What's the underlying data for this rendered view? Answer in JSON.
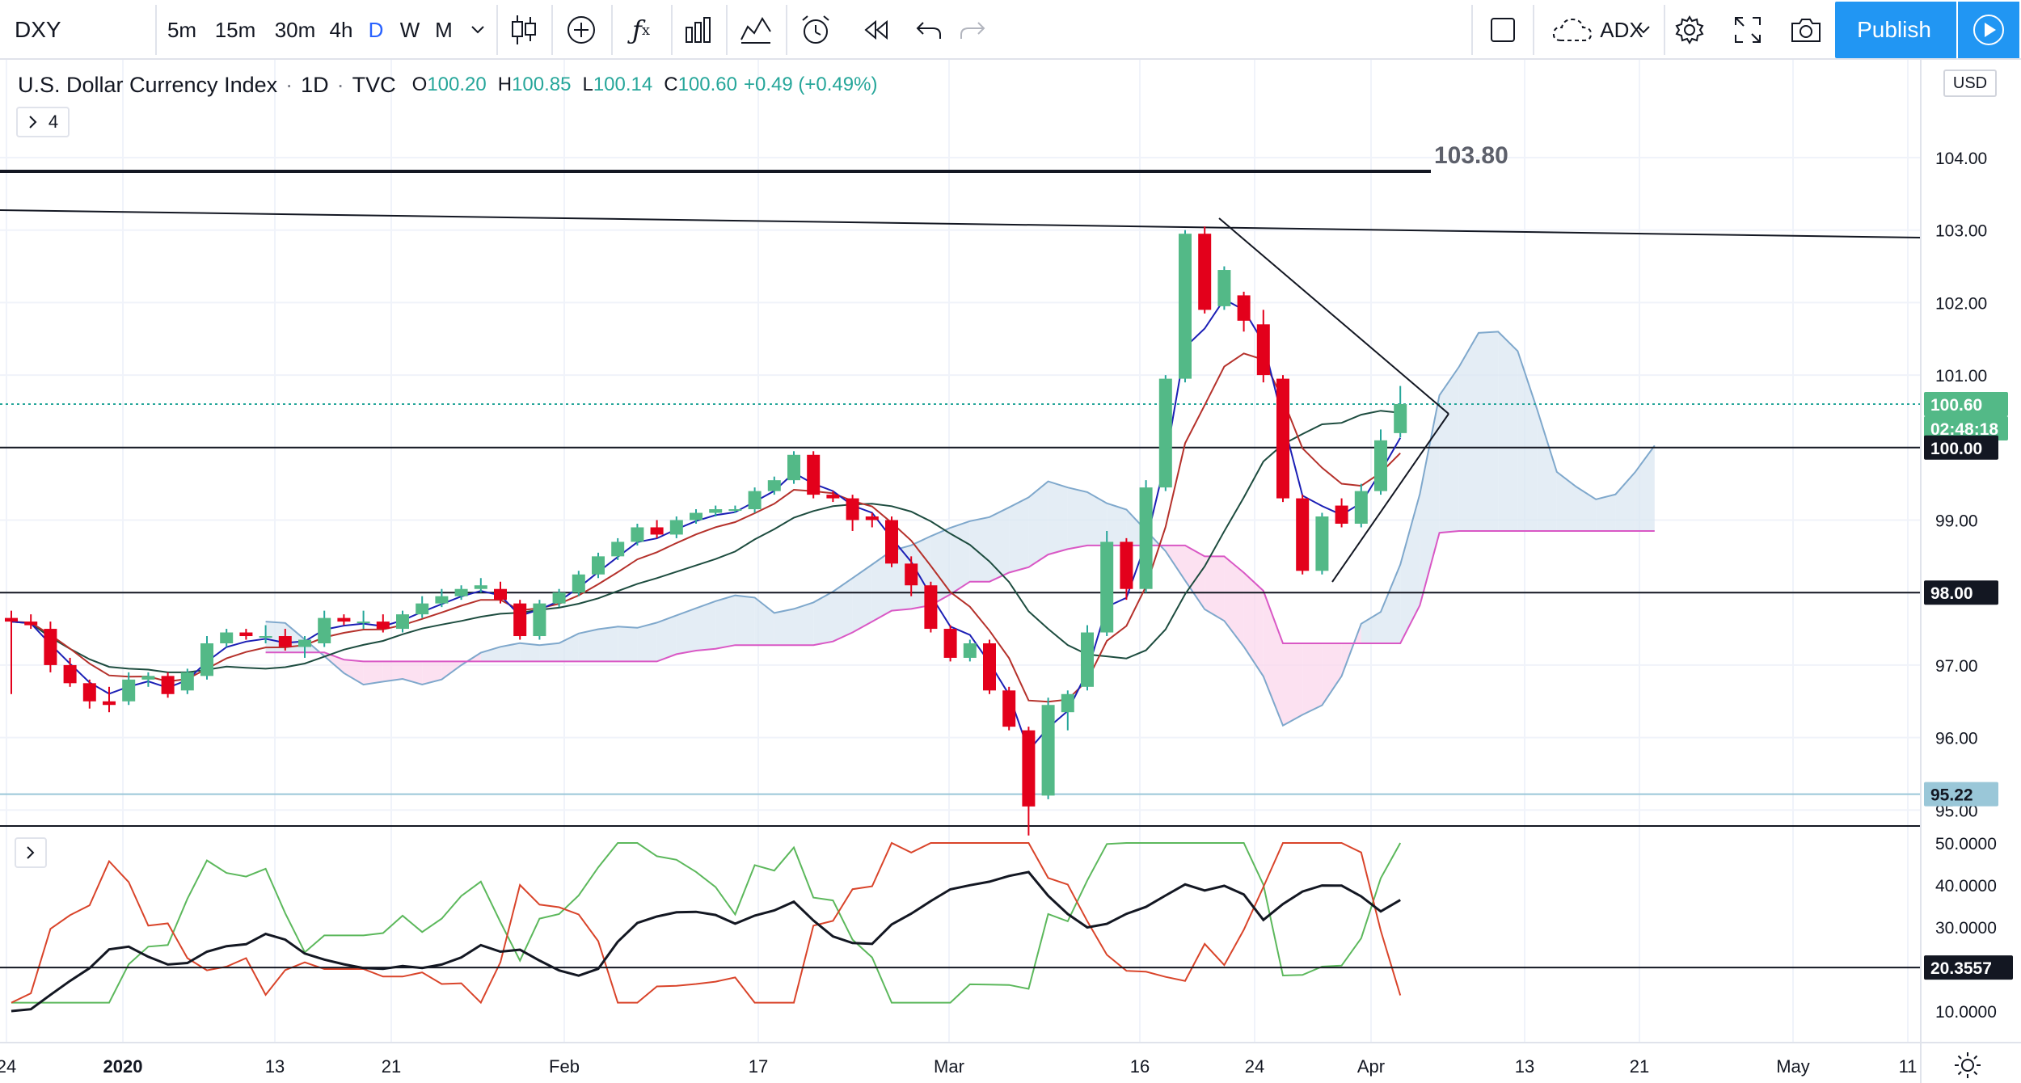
{
  "toolbar": {
    "symbol": "DXY",
    "intervals": [
      "5m",
      "15m",
      "30m",
      "4h",
      "D",
      "W",
      "M"
    ],
    "active_interval": "D",
    "indicator_name": "ADX",
    "publish_label": "Publish"
  },
  "legend": {
    "symbol_name": "U.S. Dollar Currency Index",
    "sep1": "·",
    "interval": "1D",
    "sep2": "·",
    "exchange": "TVC",
    "open_label": "O",
    "open": "100.20",
    "high_label": "H",
    "high": "100.85",
    "low_label": "L",
    "low": "100.14",
    "close_label": "C",
    "close": "100.60",
    "change": "+0.49 (+0.49%)",
    "indicator_count": "4"
  },
  "currency": "USD",
  "colors": {
    "up": "#26a69a",
    "up_fill": "#53b987",
    "down": "#e3001b",
    "accent": "#2196f3",
    "kumo_bull": "#dbe7f2",
    "kumo_bear": "#fbd7ec"
  },
  "chart_data": {
    "type": "candlestick",
    "y_axis_ticks": [
      "104.00",
      "103.00",
      "102.00",
      "101.00",
      "99.00",
      "97.00",
      "96.00",
      "95.00"
    ],
    "x_axis_ticks": [
      "24",
      "2020",
      "13",
      "21",
      "Feb",
      "17",
      "Mar",
      "16",
      "24",
      "Apr",
      "13",
      "21",
      "May",
      "11"
    ],
    "price_labels": [
      {
        "text": "100.60",
        "kind": "last"
      },
      {
        "text": "02:48:18",
        "kind": "countdown"
      },
      {
        "text": "100.00",
        "kind": "hline"
      },
      {
        "text": "98.00",
        "kind": "hline"
      },
      {
        "text": "95.22",
        "kind": "cyan"
      }
    ],
    "annotation": "103.80",
    "candles": [
      {
        "o": 97.65,
        "h": 97.75,
        "l": 96.6,
        "c": 97.6
      },
      {
        "o": 97.6,
        "h": 97.7,
        "l": 97.5,
        "c": 97.55
      },
      {
        "o": 97.5,
        "h": 97.6,
        "l": 96.9,
        "c": 97.0
      },
      {
        "o": 97.0,
        "h": 97.1,
        "l": 96.7,
        "c": 96.75
      },
      {
        "o": 96.75,
        "h": 96.8,
        "l": 96.4,
        "c": 96.5
      },
      {
        "o": 96.5,
        "h": 96.7,
        "l": 96.35,
        "c": 96.45
      },
      {
        "o": 96.5,
        "h": 96.9,
        "l": 96.45,
        "c": 96.8
      },
      {
        "o": 96.8,
        "h": 96.9,
        "l": 96.7,
        "c": 96.85
      },
      {
        "o": 96.85,
        "h": 96.9,
        "l": 96.55,
        "c": 96.6
      },
      {
        "o": 96.65,
        "h": 96.95,
        "l": 96.6,
        "c": 96.9
      },
      {
        "o": 96.85,
        "h": 97.4,
        "l": 96.8,
        "c": 97.3
      },
      {
        "o": 97.3,
        "h": 97.5,
        "l": 97.25,
        "c": 97.45
      },
      {
        "o": 97.45,
        "h": 97.5,
        "l": 97.35,
        "c": 97.4
      },
      {
        "o": 97.4,
        "h": 97.55,
        "l": 97.3,
        "c": 97.4
      },
      {
        "o": 97.4,
        "h": 97.5,
        "l": 97.2,
        "c": 97.25
      },
      {
        "o": 97.25,
        "h": 97.4,
        "l": 97.1,
        "c": 97.35
      },
      {
        "o": 97.3,
        "h": 97.75,
        "l": 97.25,
        "c": 97.65
      },
      {
        "o": 97.65,
        "h": 97.7,
        "l": 97.55,
        "c": 97.6
      },
      {
        "o": 97.6,
        "h": 97.75,
        "l": 97.5,
        "c": 97.6
      },
      {
        "o": 97.6,
        "h": 97.7,
        "l": 97.45,
        "c": 97.5
      },
      {
        "o": 97.5,
        "h": 97.75,
        "l": 97.45,
        "c": 97.7
      },
      {
        "o": 97.7,
        "h": 97.95,
        "l": 97.65,
        "c": 97.85
      },
      {
        "o": 97.85,
        "h": 98.05,
        "l": 97.8,
        "c": 97.95
      },
      {
        "o": 97.95,
        "h": 98.1,
        "l": 97.9,
        "c": 98.05
      },
      {
        "o": 98.05,
        "h": 98.2,
        "l": 98.0,
        "c": 98.1
      },
      {
        "o": 98.05,
        "h": 98.15,
        "l": 97.85,
        "c": 97.9
      },
      {
        "o": 97.85,
        "h": 97.9,
        "l": 97.35,
        "c": 97.4
      },
      {
        "o": 97.4,
        "h": 97.9,
        "l": 97.35,
        "c": 97.85
      },
      {
        "o": 97.85,
        "h": 98.05,
        "l": 97.8,
        "c": 98.0
      },
      {
        "o": 98.0,
        "h": 98.3,
        "l": 97.95,
        "c": 98.25
      },
      {
        "o": 98.25,
        "h": 98.55,
        "l": 98.2,
        "c": 98.5
      },
      {
        "o": 98.5,
        "h": 98.75,
        "l": 98.45,
        "c": 98.7
      },
      {
        "o": 98.7,
        "h": 98.95,
        "l": 98.65,
        "c": 98.9
      },
      {
        "o": 98.9,
        "h": 99.0,
        "l": 98.75,
        "c": 98.8
      },
      {
        "o": 98.8,
        "h": 99.05,
        "l": 98.75,
        "c": 99.0
      },
      {
        "o": 99.0,
        "h": 99.15,
        "l": 98.95,
        "c": 99.1
      },
      {
        "o": 99.1,
        "h": 99.2,
        "l": 99.05,
        "c": 99.15
      },
      {
        "o": 99.15,
        "h": 99.2,
        "l": 99.1,
        "c": 99.15
      },
      {
        "o": 99.15,
        "h": 99.45,
        "l": 99.1,
        "c": 99.4
      },
      {
        "o": 99.4,
        "h": 99.6,
        "l": 99.35,
        "c": 99.55
      },
      {
        "o": 99.55,
        "h": 99.95,
        "l": 99.5,
        "c": 99.9
      },
      {
        "o": 99.9,
        "h": 99.95,
        "l": 99.3,
        "c": 99.35
      },
      {
        "o": 99.35,
        "h": 99.4,
        "l": 99.25,
        "c": 99.3
      },
      {
        "o": 99.3,
        "h": 99.35,
        "l": 98.85,
        "c": 99.0
      },
      {
        "o": 99.05,
        "h": 99.1,
        "l": 98.9,
        "c": 99.0
      },
      {
        "o": 99.0,
        "h": 99.05,
        "l": 98.35,
        "c": 98.4
      },
      {
        "o": 98.4,
        "h": 98.5,
        "l": 97.95,
        "c": 98.1
      },
      {
        "o": 98.1,
        "h": 98.15,
        "l": 97.45,
        "c": 97.5
      },
      {
        "o": 97.5,
        "h": 97.55,
        "l": 97.05,
        "c": 97.1
      },
      {
        "o": 97.1,
        "h": 97.35,
        "l": 97.05,
        "c": 97.3
      },
      {
        "o": 97.3,
        "h": 97.35,
        "l": 96.6,
        "c": 96.65
      },
      {
        "o": 96.65,
        "h": 96.7,
        "l": 96.1,
        "c": 96.15
      },
      {
        "o": 96.1,
        "h": 96.15,
        "l": 94.65,
        "c": 95.05
      },
      {
        "o": 95.2,
        "h": 96.55,
        "l": 95.15,
        "c": 96.45
      },
      {
        "o": 96.35,
        "h": 96.65,
        "l": 96.1,
        "c": 96.6
      },
      {
        "o": 96.7,
        "h": 97.55,
        "l": 96.65,
        "c": 97.45
      },
      {
        "o": 97.45,
        "h": 98.85,
        "l": 97.4,
        "c": 98.7
      },
      {
        "o": 98.7,
        "h": 98.75,
        "l": 97.9,
        "c": 98.05
      },
      {
        "o": 98.05,
        "h": 99.55,
        "l": 98.0,
        "c": 99.45
      },
      {
        "o": 99.45,
        "h": 101.0,
        "l": 99.4,
        "c": 100.95
      },
      {
        "o": 100.95,
        "h": 103.0,
        "l": 100.9,
        "c": 102.95
      },
      {
        "o": 102.95,
        "h": 103.05,
        "l": 101.85,
        "c": 101.9
      },
      {
        "o": 101.95,
        "h": 102.5,
        "l": 101.9,
        "c": 102.45
      },
      {
        "o": 102.1,
        "h": 102.15,
        "l": 101.6,
        "c": 101.75
      },
      {
        "o": 101.7,
        "h": 101.9,
        "l": 100.9,
        "c": 101.0
      },
      {
        "o": 100.95,
        "h": 101.0,
        "l": 99.25,
        "c": 99.3
      },
      {
        "o": 99.3,
        "h": 99.35,
        "l": 98.25,
        "c": 98.3
      },
      {
        "o": 98.3,
        "h": 99.1,
        "l": 98.25,
        "c": 99.05
      },
      {
        "o": 99.2,
        "h": 99.3,
        "l": 98.9,
        "c": 98.95
      },
      {
        "o": 98.95,
        "h": 99.5,
        "l": 98.9,
        "c": 99.4
      },
      {
        "o": 99.4,
        "h": 100.25,
        "l": 99.35,
        "c": 100.1
      },
      {
        "o": 100.2,
        "h": 100.85,
        "l": 100.14,
        "c": 100.6
      }
    ],
    "adx_panel": {
      "y_ticks": [
        "50.0000",
        "40.0000",
        "30.0000",
        "10.0000"
      ],
      "last_value": "20.3557"
    }
  }
}
